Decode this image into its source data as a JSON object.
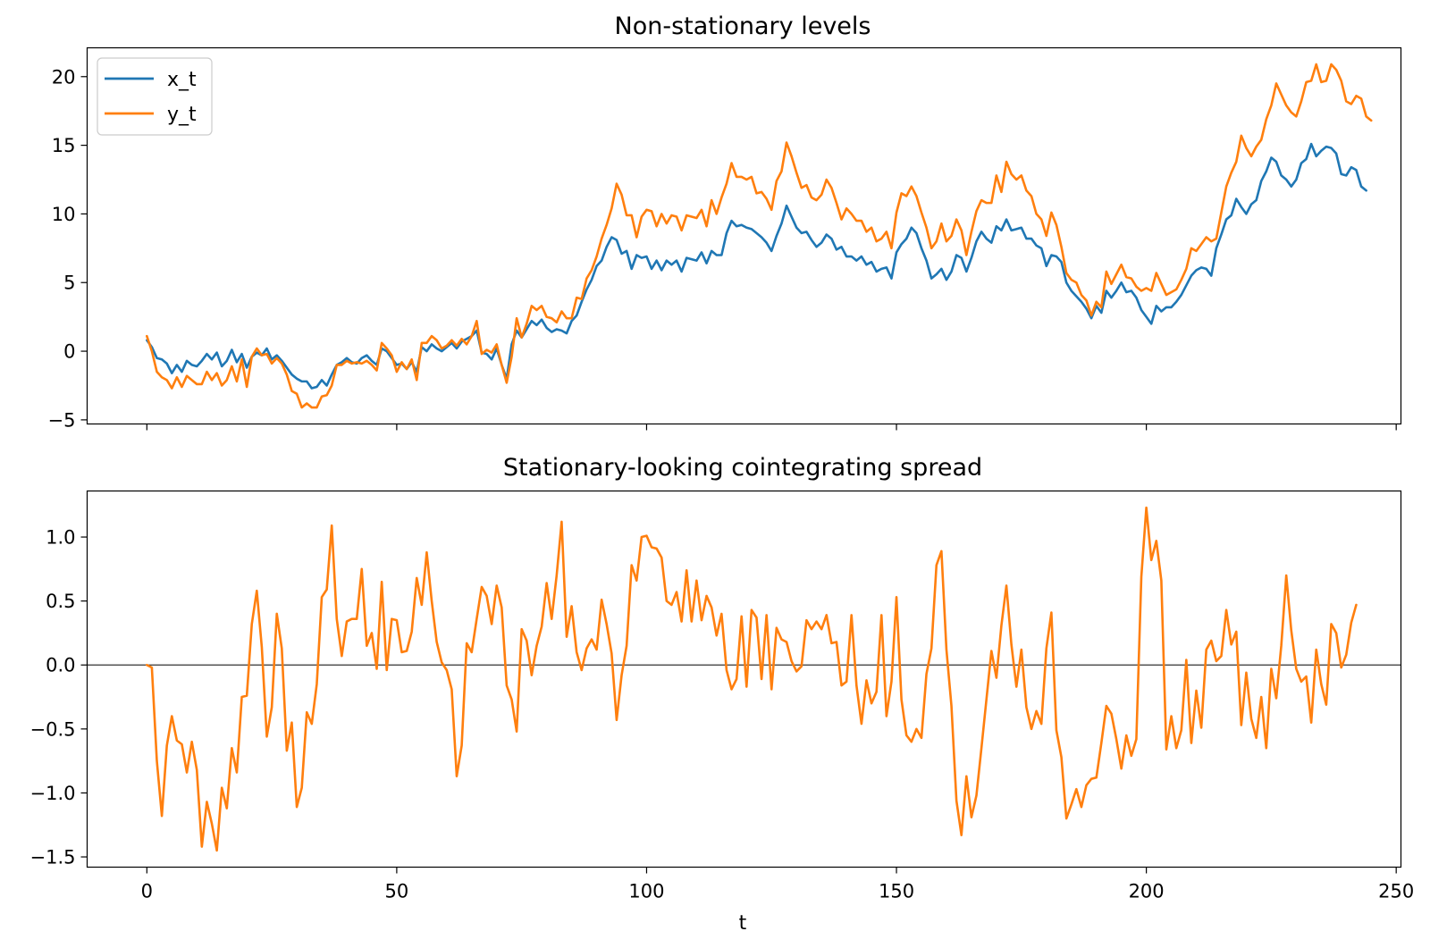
{
  "chart_data": [
    {
      "type": "line",
      "title": "Non-stationary levels",
      "xlabel": "",
      "ylabel": "",
      "xlim": [
        -11.95,
        250.95
      ],
      "ylim": [
        -5.3,
        22.1
      ],
      "xticks": [
        0,
        50,
        100,
        150,
        200,
        250
      ],
      "yticks": [
        -5,
        0,
        5,
        10,
        15,
        20
      ],
      "yticklabels": [
        "−5",
        "0",
        "5",
        "10",
        "15",
        "20"
      ],
      "show_xticklabels": false,
      "legend": "top-left",
      "series": [
        {
          "name": "x_t",
          "color": "#1f77b4",
          "values": [
            0.8,
            0.3,
            -0.5,
            -0.6,
            -0.9,
            -1.6,
            -1.0,
            -1.5,
            -0.7,
            -1.0,
            -1.1,
            -0.7,
            -0.2,
            -0.6,
            -0.1,
            -1.1,
            -0.7,
            0.1,
            -0.8,
            -0.2,
            -1.2,
            -0.4,
            -0.1,
            -0.3,
            0.2,
            -0.6,
            -0.3,
            -0.7,
            -1.2,
            -1.7,
            -2.0,
            -2.2,
            -2.2,
            -2.7,
            -2.6,
            -2.1,
            -2.5,
            -1.7,
            -1.0,
            -0.8,
            -0.5,
            -0.8,
            -0.9,
            -0.5,
            -0.3,
            -0.7,
            -1.0,
            0.2,
            0.0,
            -0.5,
            -1.0,
            -0.9,
            -1.3,
            -0.8,
            -1.5,
            0.3,
            0.0,
            0.5,
            0.2,
            0.0,
            0.3,
            0.6,
            0.2,
            0.7,
            0.9,
            1.1,
            1.5,
            -0.1,
            -0.2,
            -0.6,
            0.2,
            -1.0,
            -2.0,
            0.5,
            1.5,
            1.0,
            1.6,
            2.2,
            1.9,
            2.3,
            1.7,
            1.4,
            1.6,
            1.5,
            1.3,
            2.2,
            2.6,
            3.6,
            4.5,
            5.2,
            6.2,
            6.6,
            7.6,
            8.3,
            8.1,
            7.1,
            7.3,
            6.0,
            7.0,
            6.8,
            6.9,
            6.0,
            6.6,
            5.9,
            6.6,
            6.3,
            6.6,
            5.8,
            6.8,
            6.7,
            6.6,
            7.2,
            6.4,
            7.3,
            7.0,
            7.0,
            8.6,
            9.5,
            9.1,
            9.2,
            9.0,
            8.9,
            8.6,
            8.3,
            7.9,
            7.3,
            8.4,
            9.3,
            10.6,
            9.8,
            9.0,
            8.6,
            8.7,
            8.1,
            7.6,
            7.9,
            8.5,
            8.2,
            7.4,
            7.6,
            6.9,
            6.9,
            6.6,
            6.9,
            6.3,
            6.5,
            5.8,
            6.0,
            6.1,
            5.3,
            7.2,
            7.8,
            8.2,
            9.0,
            8.6,
            7.5,
            6.6,
            5.3,
            5.6,
            6.0,
            5.2,
            5.8,
            7.0,
            6.8,
            5.8,
            6.8,
            8.0,
            8.7,
            8.2,
            7.9,
            9.1,
            8.8,
            9.6,
            8.8,
            8.9,
            9.0,
            8.2,
            8.2,
            7.7,
            7.5,
            6.2,
            7.0,
            6.9,
            6.5,
            5.0,
            4.4,
            4.0,
            3.6,
            3.1,
            2.4,
            3.3,
            2.8,
            4.4,
            3.9,
            4.4,
            5.0,
            4.3,
            4.4,
            3.9,
            3.0,
            2.5,
            2.0,
            3.3,
            2.9,
            3.2,
            3.2,
            3.6,
            4.1,
            4.8,
            5.5,
            5.9,
            6.1,
            6.0,
            5.5,
            7.5,
            8.5,
            9.6,
            9.9,
            11.1,
            10.5,
            10.0,
            10.7,
            11.0,
            12.4,
            13.1,
            14.1,
            13.8,
            12.8,
            12.5,
            12.0,
            12.5,
            13.7,
            14.0,
            15.1,
            14.2,
            14.6,
            14.9,
            14.8,
            14.4,
            12.9,
            12.8,
            13.4,
            13.2,
            12.0,
            11.7
          ]
        },
        {
          "name": "y_t",
          "color": "#ff7f0e",
          "values": [
            1.1,
            0.0,
            -1.5,
            -1.9,
            -2.1,
            -2.7,
            -1.9,
            -2.6,
            -1.8,
            -2.1,
            -2.4,
            -2.4,
            -1.5,
            -2.1,
            -1.6,
            -2.5,
            -2.1,
            -1.1,
            -2.2,
            -0.6,
            -2.6,
            -0.4,
            0.2,
            -0.3,
            -0.2,
            -0.9,
            -0.5,
            -0.9,
            -1.7,
            -2.9,
            -3.1,
            -4.1,
            -3.8,
            -4.1,
            -4.1,
            -3.3,
            -3.2,
            -2.5,
            -1.0,
            -1.0,
            -0.7,
            -0.9,
            -0.8,
            -0.9,
            -0.7,
            -1.0,
            -1.4,
            0.6,
            0.2,
            -0.3,
            -1.5,
            -0.8,
            -1.3,
            -0.6,
            -2.1,
            0.6,
            0.6,
            1.1,
            0.8,
            0.2,
            0.4,
            0.8,
            0.4,
            0.9,
            0.5,
            1.1,
            2.2,
            -0.2,
            0.1,
            -0.1,
            0.5,
            -1.0,
            -2.3,
            -0.4,
            2.4,
            1.0,
            2.0,
            3.3,
            3.0,
            3.3,
            2.5,
            2.4,
            2.1,
            2.9,
            2.4,
            2.4,
            3.9,
            3.8,
            5.3,
            5.9,
            6.9,
            8.2,
            9.2,
            10.4,
            12.2,
            11.4,
            9.9,
            9.9,
            8.3,
            9.8,
            10.3,
            10.2,
            9.1,
            10.0,
            9.3,
            9.9,
            9.8,
            8.8,
            9.9,
            9.8,
            9.7,
            10.3,
            9.1,
            11.0,
            10.0,
            11.2,
            12.2,
            13.7,
            12.7,
            12.7,
            12.5,
            12.7,
            11.5,
            11.6,
            11.1,
            10.3,
            12.4,
            13.1,
            15.2,
            14.2,
            13.0,
            11.9,
            12.1,
            11.2,
            11.0,
            11.4,
            12.5,
            11.9,
            10.8,
            9.6,
            10.4,
            10.0,
            9.5,
            9.5,
            8.7,
            9.0,
            8.0,
            8.2,
            8.7,
            7.5,
            10.1,
            11.5,
            11.3,
            12.0,
            11.3,
            10.1,
            9.0,
            7.5,
            8.0,
            9.3,
            8.0,
            8.4,
            9.6,
            8.8,
            7.0,
            8.7,
            10.2,
            11.0,
            10.8,
            10.8,
            12.8,
            11.6,
            13.8,
            12.9,
            12.5,
            12.8,
            11.7,
            11.3,
            10.0,
            9.6,
            8.4,
            10.1,
            9.2,
            7.6,
            5.7,
            5.2,
            5.0,
            4.1,
            3.7,
            2.6,
            3.6,
            3.2,
            5.8,
            4.9,
            5.6,
            6.3,
            5.4,
            5.3,
            4.7,
            4.4,
            4.6,
            4.4,
            5.7,
            4.9,
            4.1,
            4.3,
            4.5,
            5.2,
            6.0,
            7.5,
            7.3,
            7.8,
            8.3,
            8.0,
            8.2,
            10.1,
            12.0,
            13.0,
            13.8,
            15.7,
            14.8,
            14.2,
            14.9,
            15.4,
            16.9,
            17.9,
            19.5,
            18.7,
            17.9,
            17.4,
            17.1,
            18.2,
            19.6,
            19.7,
            20.9,
            19.6,
            19.7,
            20.9,
            20.5,
            19.7,
            18.2,
            18.0,
            18.6,
            18.4,
            17.1,
            16.8
          ]
        }
      ]
    },
    {
      "type": "line",
      "title": "Stationary-looking cointegrating spread",
      "xlabel": "t",
      "ylabel": "",
      "xlim": [
        -11.95,
        250.95
      ],
      "ylim": [
        -1.58,
        1.36
      ],
      "xticks": [
        0,
        50,
        100,
        150,
        200,
        250
      ],
      "xticklabels": [
        "0",
        "50",
        "100",
        "150",
        "200",
        "250"
      ],
      "yticks": [
        -1.5,
        -1.0,
        -0.5,
        0.0,
        0.5,
        1.0
      ],
      "yticklabels": [
        "−1.5",
        "−1.0",
        "−0.5",
        "0.0",
        "0.5",
        "1.0"
      ],
      "reference_line": 0.0,
      "series": [
        {
          "color": "#ff7f0e",
          "values": [
            0.0,
            -0.02,
            -0.75,
            -1.18,
            -0.63,
            -0.4,
            -0.59,
            -0.62,
            -0.84,
            -0.6,
            -0.82,
            -1.42,
            -1.07,
            -1.24,
            -1.45,
            -0.96,
            -1.12,
            -0.65,
            -0.84,
            -0.25,
            -0.24,
            0.32,
            0.58,
            0.14,
            -0.56,
            -0.33,
            0.4,
            0.13,
            -0.67,
            -0.45,
            -1.11,
            -0.96,
            -0.37,
            -0.46,
            -0.15,
            0.53,
            0.59,
            1.09,
            0.36,
            0.07,
            0.34,
            0.36,
            0.36,
            0.75,
            0.15,
            0.25,
            -0.03,
            0.65,
            -0.04,
            0.36,
            0.35,
            0.1,
            0.11,
            0.26,
            0.68,
            0.47,
            0.88,
            0.5,
            0.18,
            0.02,
            -0.04,
            -0.19,
            -0.87,
            -0.63,
            0.17,
            0.1,
            0.36,
            0.61,
            0.54,
            0.32,
            0.62,
            0.45,
            -0.16,
            -0.27,
            -0.52,
            0.28,
            0.19,
            -0.08,
            0.15,
            0.3,
            0.64,
            0.36,
            0.7,
            1.12,
            0.22,
            0.46,
            0.1,
            -0.04,
            0.13,
            0.2,
            0.12,
            0.51,
            0.32,
            0.09,
            -0.43,
            -0.08,
            0.15,
            0.78,
            0.66,
            1.0,
            1.01,
            0.92,
            0.91,
            0.84,
            0.5,
            0.47,
            0.57,
            0.34,
            0.74,
            0.34,
            0.66,
            0.35,
            0.54,
            0.45,
            0.23,
            0.4,
            -0.04,
            -0.19,
            -0.11,
            0.38,
            -0.17,
            0.43,
            0.37,
            -0.11,
            0.39,
            -0.19,
            0.29,
            0.2,
            0.18,
            0.03,
            -0.05,
            -0.01,
            0.35,
            0.28,
            0.34,
            0.28,
            0.39,
            0.17,
            0.18,
            -0.16,
            -0.13,
            0.39,
            -0.16,
            -0.46,
            -0.12,
            -0.3,
            -0.21,
            0.39,
            -0.4,
            -0.13,
            0.53,
            -0.27,
            -0.55,
            -0.6,
            -0.5,
            -0.57,
            -0.07,
            0.13,
            0.78,
            0.89,
            0.12,
            -0.32,
            -1.06,
            -1.33,
            -0.87,
            -1.19,
            -1.02,
            -0.65,
            -0.27,
            0.11,
            -0.1,
            0.31,
            0.62,
            0.16,
            -0.17,
            0.12,
            -0.33,
            -0.5,
            -0.36,
            -0.46,
            0.13,
            0.41,
            -0.51,
            -0.72,
            -1.2,
            -1.09,
            -0.97,
            -1.11,
            -0.94,
            -0.89,
            -0.88,
            -0.61,
            -0.32,
            -0.38,
            -0.58,
            -0.81,
            -0.55,
            -0.71,
            -0.58,
            0.69,
            1.23,
            0.82,
            0.97,
            0.66,
            -0.66,
            -0.4,
            -0.65,
            -0.51,
            0.04,
            -0.61,
            -0.2,
            -0.49,
            0.12,
            0.19,
            0.03,
            0.07,
            0.43,
            0.16,
            0.26,
            -0.47,
            -0.06,
            -0.42,
            -0.57,
            -0.25,
            -0.65,
            -0.03,
            -0.26,
            0.15,
            0.7,
            0.27,
            -0.03,
            -0.13,
            -0.09,
            -0.45,
            0.12,
            -0.15,
            -0.31,
            0.32,
            0.25,
            -0.02,
            0.08,
            0.33,
            0.47
          ]
        }
      ]
    }
  ]
}
